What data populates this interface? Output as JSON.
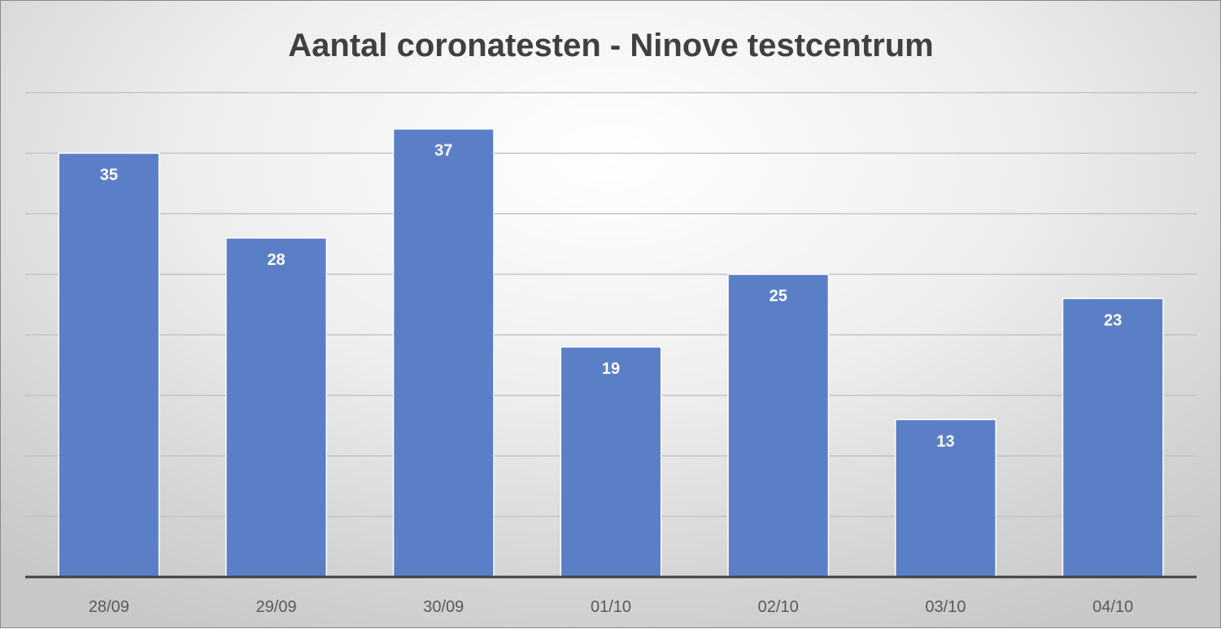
{
  "chart_data": {
    "type": "bar",
    "title": "Aantal coronatesten - Ninove testcentrum",
    "categories": [
      "28/09",
      "29/09",
      "30/09",
      "01/10",
      "02/10",
      "03/10",
      "04/10"
    ],
    "values": [
      35,
      28,
      37,
      19,
      25,
      13,
      23
    ],
    "xlabel": "",
    "ylabel": "",
    "ylim": [
      0,
      40
    ],
    "gridline_step": 5,
    "grid": true,
    "legend": "none",
    "bar_color": "#5b7fc7",
    "data_label_color": "#ffffff"
  }
}
